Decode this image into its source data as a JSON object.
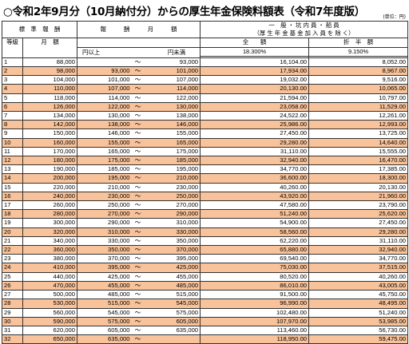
{
  "title": "○令和2年9月分（10月納付分）からの厚生年金保険料額表（令和7年度版）",
  "unit": "(単位：円)",
  "header": {
    "standard": "標　準　報　酬",
    "remuneration": "報　　　酬　　　月　　　額",
    "general": "一　般 ・ 坑 内 員 ・ 船 員",
    "fund_note": "（厚 生 年 金 基 金 加 入 員 を 除 く）",
    "total": "全　　額",
    "half": "折　半　額",
    "grade": "等級",
    "monthly": "月　額",
    "over": "円以上",
    "under": "円未満",
    "rate_total": "18.300%",
    "rate_half": "9.150%",
    "tilde": "～"
  },
  "rows": [
    {
      "grade": "1",
      "monthly": "88,000",
      "from": "",
      "to": "93,000",
      "total": "16,104.00",
      "half": "8,052.00"
    },
    {
      "grade": "2",
      "monthly": "98,000",
      "from": "93,000",
      "to": "101,000",
      "total": "17,934.00",
      "half": "8,967.00"
    },
    {
      "grade": "3",
      "monthly": "104,000",
      "from": "101,000",
      "to": "107,000",
      "total": "19,032.00",
      "half": "9,516.00"
    },
    {
      "grade": "4",
      "monthly": "110,000",
      "from": "107,000",
      "to": "114,000",
      "total": "20,130.00",
      "half": "10,065.00"
    },
    {
      "grade": "5",
      "monthly": "118,000",
      "from": "114,000",
      "to": "122,000",
      "total": "21,594.00",
      "half": "10,797.00"
    },
    {
      "grade": "6",
      "monthly": "126,000",
      "from": "122,000",
      "to": "130,000",
      "total": "23,058.00",
      "half": "11,529.00"
    },
    {
      "grade": "7",
      "monthly": "134,000",
      "from": "130,000",
      "to": "138,000",
      "total": "24,522.00",
      "half": "12,261.00"
    },
    {
      "grade": "8",
      "monthly": "142,000",
      "from": "138,000",
      "to": "146,000",
      "total": "25,986.00",
      "half": "12,993.00"
    },
    {
      "grade": "9",
      "monthly": "150,000",
      "from": "146,000",
      "to": "155,000",
      "total": "27,450.00",
      "half": "13,725.00"
    },
    {
      "grade": "10",
      "monthly": "160,000",
      "from": "155,000",
      "to": "165,000",
      "total": "29,280.00",
      "half": "14,640.00"
    },
    {
      "grade": "11",
      "monthly": "170,000",
      "from": "165,000",
      "to": "175,000",
      "total": "31,110.00",
      "half": "15,555.00"
    },
    {
      "grade": "12",
      "monthly": "180,000",
      "from": "175,000",
      "to": "185,000",
      "total": "32,940.00",
      "half": "16,470.00"
    },
    {
      "grade": "13",
      "monthly": "190,000",
      "from": "185,000",
      "to": "195,000",
      "total": "34,770.00",
      "half": "17,385.00"
    },
    {
      "grade": "14",
      "monthly": "200,000",
      "from": "195,000",
      "to": "210,000",
      "total": "36,600.00",
      "half": "18,300.00"
    },
    {
      "grade": "15",
      "monthly": "220,000",
      "from": "210,000",
      "to": "230,000",
      "total": "40,260.00",
      "half": "20,130.00"
    },
    {
      "grade": "16",
      "monthly": "240,000",
      "from": "230,000",
      "to": "250,000",
      "total": "43,920.00",
      "half": "21,960.00"
    },
    {
      "grade": "17",
      "monthly": "260,000",
      "from": "250,000",
      "to": "270,000",
      "total": "47,580.00",
      "half": "23,790.00"
    },
    {
      "grade": "18",
      "monthly": "280,000",
      "from": "270,000",
      "to": "290,000",
      "total": "51,240.00",
      "half": "25,620.00"
    },
    {
      "grade": "19",
      "monthly": "300,000",
      "from": "290,000",
      "to": "310,000",
      "total": "54,900.00",
      "half": "27,450.00"
    },
    {
      "grade": "20",
      "monthly": "320,000",
      "from": "310,000",
      "to": "330,000",
      "total": "58,560.00",
      "half": "29,280.00"
    },
    {
      "grade": "21",
      "monthly": "340,000",
      "from": "330,000",
      "to": "350,000",
      "total": "62,220.00",
      "half": "31,110.00"
    },
    {
      "grade": "22",
      "monthly": "360,000",
      "from": "350,000",
      "to": "370,000",
      "total": "65,880.00",
      "half": "32,940.00"
    },
    {
      "grade": "23",
      "monthly": "380,000",
      "from": "370,000",
      "to": "395,000",
      "total": "69,540.00",
      "half": "34,770.00"
    },
    {
      "grade": "24",
      "monthly": "410,000",
      "from": "395,000",
      "to": "425,000",
      "total": "75,030.00",
      "half": "37,515.00"
    },
    {
      "grade": "25",
      "monthly": "440,000",
      "from": "425,000",
      "to": "455,000",
      "total": "80,520.00",
      "half": "40,260.00"
    },
    {
      "grade": "26",
      "monthly": "470,000",
      "from": "455,000",
      "to": "485,000",
      "total": "86,010.00",
      "half": "43,005.00"
    },
    {
      "grade": "27",
      "monthly": "500,000",
      "from": "485,000",
      "to": "515,000",
      "total": "91,500.00",
      "half": "45,750.00"
    },
    {
      "grade": "28",
      "monthly": "530,000",
      "from": "515,000",
      "to": "545,000",
      "total": "96,990.00",
      "half": "48,495.00"
    },
    {
      "grade": "29",
      "monthly": "560,000",
      "from": "545,000",
      "to": "575,000",
      "total": "102,480.00",
      "half": "51,240.00"
    },
    {
      "grade": "30",
      "monthly": "590,000",
      "from": "575,000",
      "to": "605,000",
      "total": "107,970.00",
      "half": "53,985.00"
    },
    {
      "grade": "31",
      "monthly": "620,000",
      "from": "605,000",
      "to": "635,000",
      "total": "113,460.00",
      "half": "56,730.00"
    },
    {
      "grade": "32",
      "monthly": "650,000",
      "from": "635,000",
      "to": "",
      "total": "118,950.00",
      "half": "59,475.00"
    }
  ],
  "colors": {
    "highlight": "#f8c29a",
    "border": "#333333"
  }
}
